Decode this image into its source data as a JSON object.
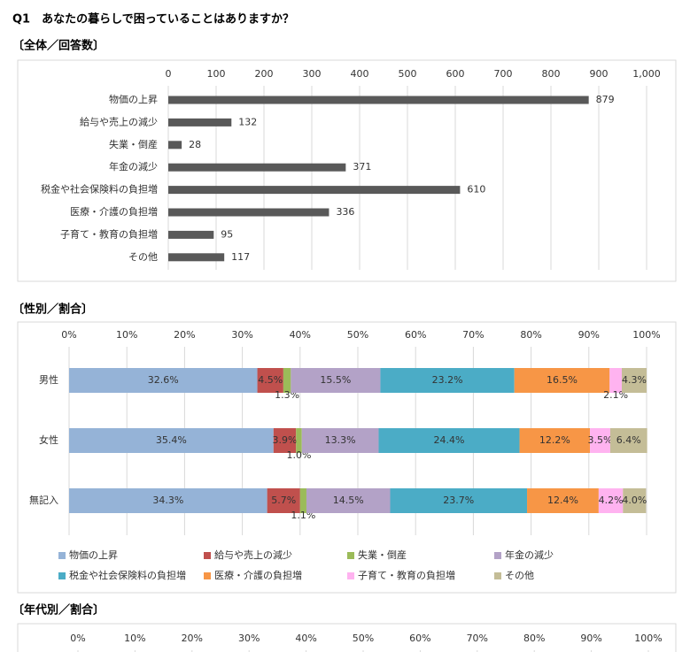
{
  "title": "Q1　あなたの暮らしで困っていることはありますか？",
  "chart_data": [
    {
      "type": "bar",
      "title": "〔全体／回答数〕",
      "categories": [
        "物価の上昇",
        "給与や売上の減少",
        "失業・倒産",
        "年金の減少",
        "税金や社会保険料の負担増",
        "医療・介護の負担増",
        "子育て・教育の負担増",
        "その他"
      ],
      "values": [
        879,
        132,
        28,
        371,
        610,
        336,
        95,
        117
      ],
      "color": "#595959",
      "xlim": [
        0,
        1000
      ],
      "xticks": [
        0,
        100,
        200,
        300,
        400,
        500,
        600,
        700,
        800,
        900,
        {
          "value": 1000,
          "label": "1,000"
        }
      ],
      "grid": true
    },
    {
      "type": "stacked_bar",
      "title": "〔性別／割合〕",
      "categories": [
        "男性",
        "女性",
        "無記入"
      ],
      "series": [
        {
          "name": "物価の上昇",
          "color": "#95b3d7",
          "values": [
            32.6,
            35.4,
            34.3
          ],
          "value_labels": [
            "32.6%",
            "35.4%",
            "34.3%"
          ]
        },
        {
          "name": "給与や売上の減少",
          "color": "#c0504d",
          "values": [
            4.5,
            3.9,
            5.7
          ],
          "value_labels": [
            "4.5%",
            "3.9%",
            "5.7%"
          ]
        },
        {
          "name": "失業・倒産",
          "color": "#9bbb59",
          "values": [
            1.3,
            1.0,
            1.1
          ],
          "value_labels": [
            "1.3%",
            "1.0%",
            "1.1%"
          ]
        },
        {
          "name": "年金の減少",
          "color": "#b3a2c7",
          "values": [
            15.5,
            13.3,
            14.5
          ],
          "value_labels": [
            "15.5%",
            "13.3%",
            "14.5%"
          ]
        },
        {
          "name": "税金や社会保険料の負担増",
          "color": "#4bacc6",
          "values": [
            23.2,
            24.4,
            23.7
          ],
          "value_labels": [
            "23.2%",
            "24.4%",
            "23.7%"
          ]
        },
        {
          "name": "医療・介護の負担増",
          "color": "#f79646",
          "values": [
            16.5,
            12.2,
            12.4
          ],
          "value_labels": [
            "16.5%",
            "12.2%",
            "12.4%"
          ]
        },
        {
          "name": "子育て・教育の負担増",
          "color": "#ffb3f0",
          "values": [
            2.1,
            3.5,
            4.2
          ],
          "value_labels": [
            "2.1%",
            "3.5%",
            "4.2%"
          ]
        },
        {
          "name": "その他",
          "color": "#c4bd97",
          "values": [
            4.3,
            6.4,
            4.0
          ],
          "value_labels": [
            "4.3%",
            "6.4%",
            "4.0%"
          ]
        }
      ],
      "xlim": [
        0,
        100
      ],
      "xticks": [
        {
          "value": 0,
          "label": "0%"
        },
        {
          "value": 10,
          "label": "10%"
        },
        {
          "value": 20,
          "label": "20%"
        },
        {
          "value": 30,
          "label": "30%"
        },
        {
          "value": 40,
          "label": "40%"
        },
        {
          "value": 50,
          "label": "50%"
        },
        {
          "value": 60,
          "label": "60%"
        },
        {
          "value": 70,
          "label": "70%"
        },
        {
          "value": 80,
          "label": "80%"
        },
        {
          "value": 90,
          "label": "90%"
        },
        {
          "value": 100,
          "label": "100%"
        }
      ],
      "grid": true,
      "legend": "bottom"
    },
    {
      "type": "stacked_bar",
      "title": "〔年代別／割合〕",
      "xlim": [
        0,
        100
      ],
      "xticks": [
        {
          "value": 0,
          "label": "0%"
        },
        {
          "value": 10,
          "label": "10%"
        },
        {
          "value": 20,
          "label": "20%"
        },
        {
          "value": 30,
          "label": "30%"
        },
        {
          "value": 40,
          "label": "40%"
        },
        {
          "value": 50,
          "label": "50%"
        },
        {
          "value": 60,
          "label": "60%"
        },
        {
          "value": 70,
          "label": "70%"
        },
        {
          "value": 80,
          "label": "80%"
        },
        {
          "value": 90,
          "label": "90%"
        },
        {
          "value": 100,
          "label": "100%"
        }
      ],
      "grid": true
    }
  ]
}
